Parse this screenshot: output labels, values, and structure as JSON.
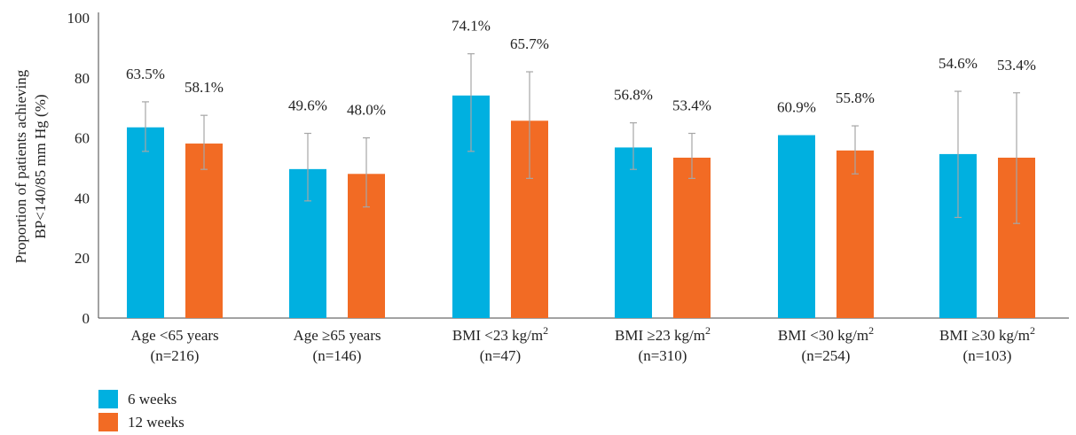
{
  "chart_data": {
    "type": "bar",
    "title": "",
    "ylabel_line1": "Proportion of patients achieving",
    "ylabel_line2": "BP<140/85 mm Hg (%)",
    "xlabel": "",
    "ylim": [
      0,
      100
    ],
    "yticks": [
      "0",
      "20",
      "40",
      "60",
      "80",
      "100"
    ],
    "categories": [
      {
        "line1": "Age <65 years",
        "sup": "",
        "line2": "(n=216)"
      },
      {
        "line1": "Age ≥65 years",
        "sup": "",
        "line2": "(n=146)"
      },
      {
        "line1": "BMI <23 kg/m",
        "sup": "2",
        "line2": "(n=47)"
      },
      {
        "line1": "BMI ≥23 kg/m",
        "sup": "2",
        "line2": "(n=310)"
      },
      {
        "line1": "BMI <30 kg/m",
        "sup": "2",
        "line2": "(n=254)"
      },
      {
        "line1": "BMI ≥30 kg/m",
        "sup": "2",
        "line2": "(n=103)"
      }
    ],
    "series": [
      {
        "name": "6 weeks",
        "color": "#00b0e0",
        "values": [
          63.5,
          49.6,
          74.1,
          56.8,
          60.9,
          54.6
        ],
        "labels": [
          "63.5%",
          "49.6%",
          "74.1%",
          "56.8%",
          "60.9%",
          "54.6%"
        ],
        "error_low": [
          55.5,
          39.0,
          55.5,
          49.5,
          null,
          33.5
        ],
        "error_high": [
          72.0,
          61.5,
          88.0,
          65.0,
          null,
          75.5
        ]
      },
      {
        "name": "12 weeks",
        "color": "#f26b24",
        "values": [
          58.1,
          48.0,
          65.7,
          53.4,
          55.8,
          53.4
        ],
        "labels": [
          "58.1%",
          "48.0%",
          "65.7%",
          "53.4%",
          "55.8%",
          "53.4%"
        ],
        "error_low": [
          49.5,
          37.0,
          46.5,
          46.5,
          48.0,
          31.5
        ],
        "error_high": [
          67.5,
          60.0,
          82.0,
          61.5,
          64.0,
          75.0
        ]
      }
    ],
    "legend_position": "bottom-left",
    "grid": false
  }
}
